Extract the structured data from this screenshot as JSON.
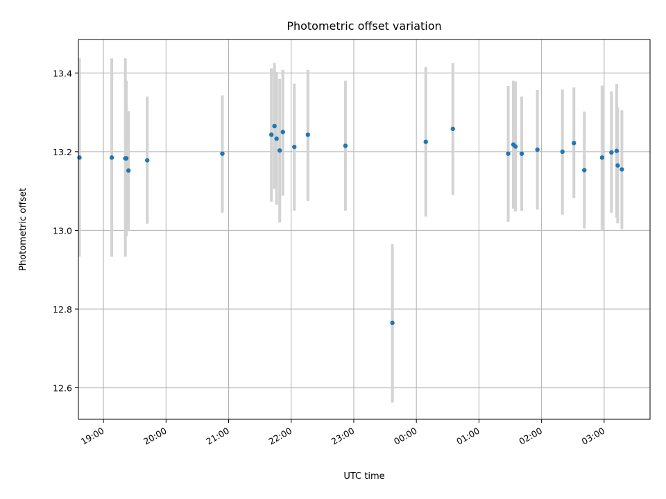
{
  "chart_data": {
    "type": "scatter",
    "title": "Photometric offset variation",
    "xlabel": "UTC time",
    "ylabel": "Photometric offset",
    "grid": true,
    "x_unit": "UTC time (HH:MM)",
    "xlim": [
      "18:36",
      "03:44"
    ],
    "ylim": [
      12.52,
      13.485
    ],
    "xticks": [
      "19:00",
      "20:00",
      "21:00",
      "22:00",
      "23:00",
      "00:00",
      "01:00",
      "02:00",
      "03:00"
    ],
    "yticks": [
      "12.6",
      "12.8",
      "13.0",
      "13.2",
      "13.4"
    ],
    "point_color": "#1f77b4",
    "errorbar_color": "#d3d3d3",
    "points": [
      {
        "t": "18:37",
        "y": 13.185,
        "lo": 12.933,
        "hi": 13.437
      },
      {
        "t": "19:08",
        "y": 13.185,
        "lo": 12.933,
        "hi": 13.437
      },
      {
        "t": "19:21",
        "y": 13.183,
        "lo": 12.933,
        "hi": 13.437
      },
      {
        "t": "19:22",
        "y": 13.183,
        "lo": 12.985,
        "hi": 13.38
      },
      {
        "t": "19:24",
        "y": 13.152,
        "lo": 13.0,
        "hi": 13.303
      },
      {
        "t": "19:42",
        "y": 13.178,
        "lo": 13.017,
        "hi": 13.34
      },
      {
        "t": "20:54",
        "y": 13.195,
        "lo": 13.045,
        "hi": 13.343
      },
      {
        "t": "21:41",
        "y": 13.243,
        "lo": 13.073,
        "hi": 13.412
      },
      {
        "t": "21:44",
        "y": 13.265,
        "lo": 13.105,
        "hi": 13.425
      },
      {
        "t": "21:46",
        "y": 13.233,
        "lo": 13.065,
        "hi": 13.402
      },
      {
        "t": "21:49",
        "y": 13.203,
        "lo": 13.02,
        "hi": 13.385
      },
      {
        "t": "21:52",
        "y": 13.25,
        "lo": 13.088,
        "hi": 13.408
      },
      {
        "t": "22:03",
        "y": 13.212,
        "lo": 13.05,
        "hi": 13.373
      },
      {
        "t": "22:16",
        "y": 13.243,
        "lo": 13.075,
        "hi": 13.408
      },
      {
        "t": "22:52",
        "y": 13.215,
        "lo": 13.05,
        "hi": 13.38
      },
      {
        "t": "23:37",
        "y": 12.765,
        "lo": 12.563,
        "hi": 12.965
      },
      {
        "t": "00:09",
        "y": 13.225,
        "lo": 13.035,
        "hi": 13.415
      },
      {
        "t": "00:35",
        "y": 13.258,
        "lo": 13.09,
        "hi": 13.425
      },
      {
        "t": "01:28",
        "y": 13.195,
        "lo": 13.022,
        "hi": 13.367
      },
      {
        "t": "01:33",
        "y": 13.218,
        "lo": 13.055,
        "hi": 13.38
      },
      {
        "t": "01:35",
        "y": 13.213,
        "lo": 13.048,
        "hi": 13.378
      },
      {
        "t": "01:41",
        "y": 13.195,
        "lo": 13.05,
        "hi": 13.34
      },
      {
        "t": "01:56",
        "y": 13.205,
        "lo": 13.053,
        "hi": 13.357
      },
      {
        "t": "02:20",
        "y": 13.2,
        "lo": 13.04,
        "hi": 13.358
      },
      {
        "t": "02:31",
        "y": 13.222,
        "lo": 13.082,
        "hi": 13.363
      },
      {
        "t": "02:41",
        "y": 13.153,
        "lo": 13.005,
        "hi": 13.302
      },
      {
        "t": "02:58",
        "y": 13.185,
        "lo": 13.0,
        "hi": 13.368
      },
      {
        "t": "03:07",
        "y": 13.198,
        "lo": 13.045,
        "hi": 13.353
      },
      {
        "t": "03:12",
        "y": 13.202,
        "lo": 13.032,
        "hi": 13.372
      },
      {
        "t": "03:13",
        "y": 13.165,
        "lo": 13.018,
        "hi": 13.312
      },
      {
        "t": "03:17",
        "y": 13.155,
        "lo": 13.003,
        "hi": 13.305
      }
    ]
  }
}
